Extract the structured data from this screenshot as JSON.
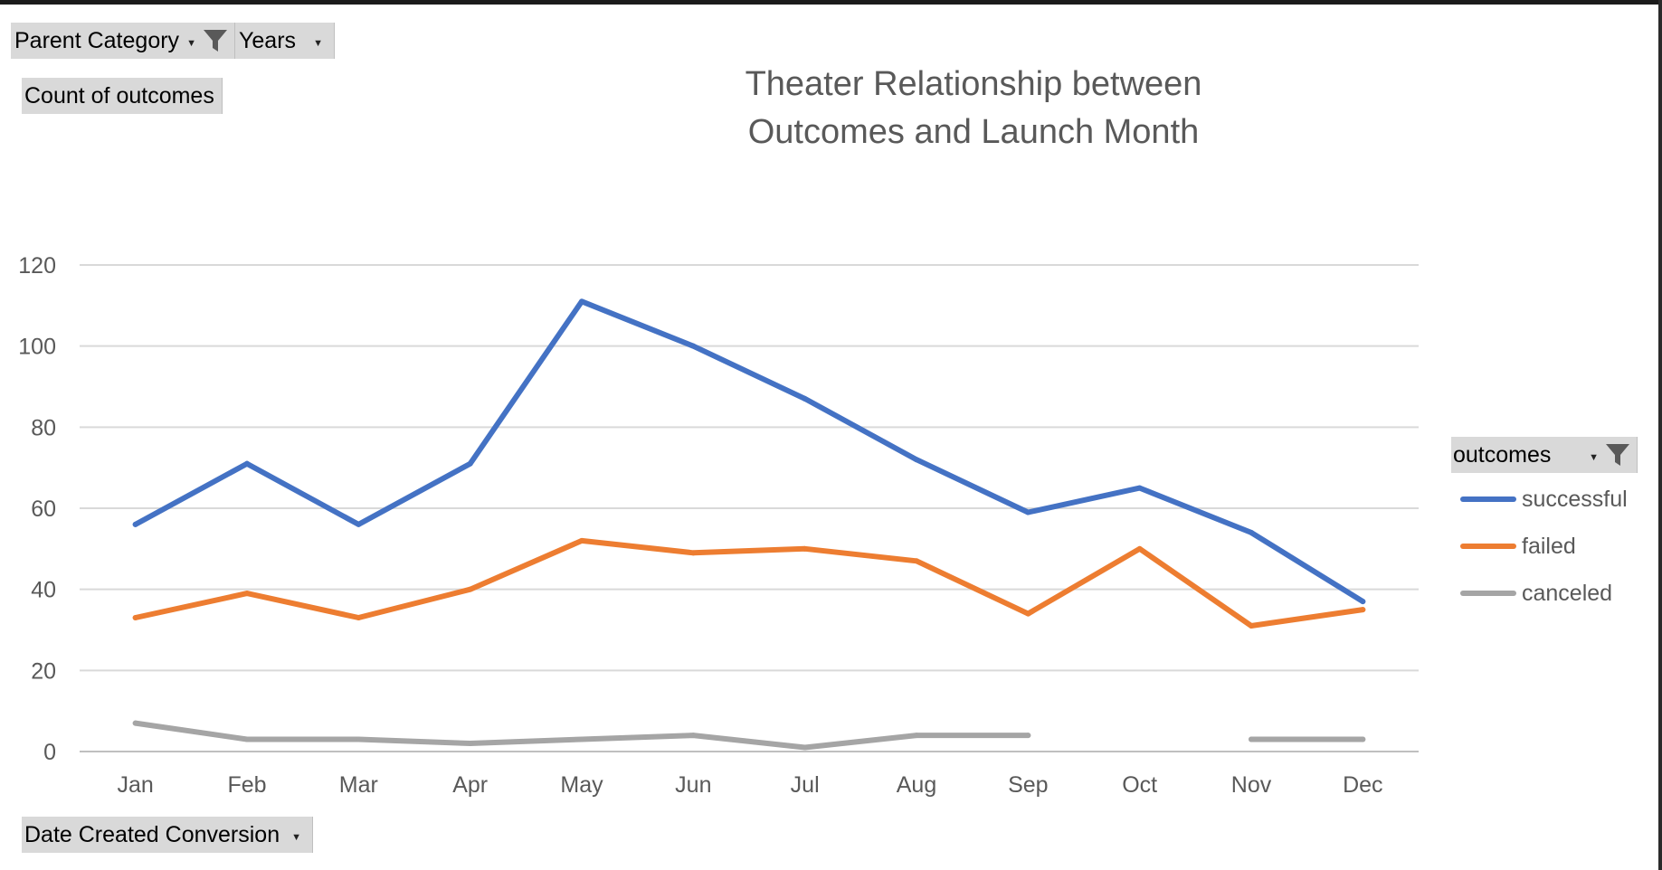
{
  "pivot": {
    "filters": [
      {
        "label": "Parent Category",
        "icon": "filter-icon"
      },
      {
        "label": "Years",
        "icon": "chevron-down-icon"
      }
    ],
    "values_field": "Count of outcomes",
    "axis_field": "Date Created Conversion",
    "legend_field": "outcomes"
  },
  "chart_data": {
    "type": "line",
    "title_lines": [
      "Theater Relationship between",
      "Outcomes and Launch Month"
    ],
    "categories": [
      "Jan",
      "Feb",
      "Mar",
      "Apr",
      "May",
      "Jun",
      "Jul",
      "Aug",
      "Sep",
      "Oct",
      "Nov",
      "Dec"
    ],
    "series": [
      {
        "name": "successful",
        "color": "#4472c4",
        "values": [
          56,
          71,
          56,
          71,
          111,
          100,
          87,
          72,
          59,
          65,
          54,
          37
        ]
      },
      {
        "name": "failed",
        "color": "#ed7d31",
        "values": [
          33,
          39,
          33,
          40,
          52,
          49,
          50,
          47,
          34,
          50,
          31,
          35
        ]
      },
      {
        "name": "canceled",
        "color": "#a5a5a5",
        "values": [
          7,
          3,
          3,
          2,
          3,
          4,
          1,
          4,
          4,
          null,
          3,
          3
        ]
      }
    ],
    "ylim": [
      0,
      120
    ],
    "yticks": [
      0,
      20,
      40,
      60,
      80,
      100,
      120
    ],
    "grid": true,
    "legend_position": "right"
  }
}
